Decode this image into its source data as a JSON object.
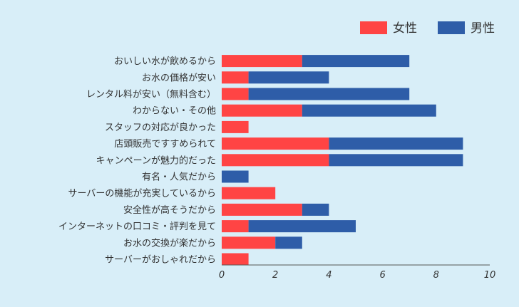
{
  "chart_data": {
    "type": "bar",
    "orientation": "horizontal",
    "stacked": true,
    "categories": [
      "おいしい水が飲めるから",
      "お水の価格が安い",
      "レンタル料が安い（無料含む）",
      "わからない・その他",
      "スタッフの対応が良かった",
      "店頭販売ですすめられて",
      "キャンペーンが魅力的だった",
      "有名・人気だから",
      "サーバーの機能が充実しているから",
      "安全性が高そうだから",
      "インターネットの口コミ・評判を見て",
      "お水の交換が楽だから",
      "サーバーがおしゃれだから"
    ],
    "series": [
      {
        "name": "女性",
        "color": "#ff4444",
        "values": [
          3,
          1,
          1,
          3,
          1,
          4,
          4,
          0,
          2,
          3,
          1,
          2,
          1
        ]
      },
      {
        "name": "男性",
        "color": "#2e5da8",
        "values": [
          4,
          3,
          6,
          5,
          0,
          5,
          5,
          1,
          0,
          1,
          4,
          1,
          0
        ]
      }
    ],
    "xlim": [
      0,
      10
    ],
    "xticks": [
      "0",
      "2",
      "4",
      "6",
      "8",
      "10"
    ],
    "grid": false,
    "legend_position": "top-right"
  }
}
